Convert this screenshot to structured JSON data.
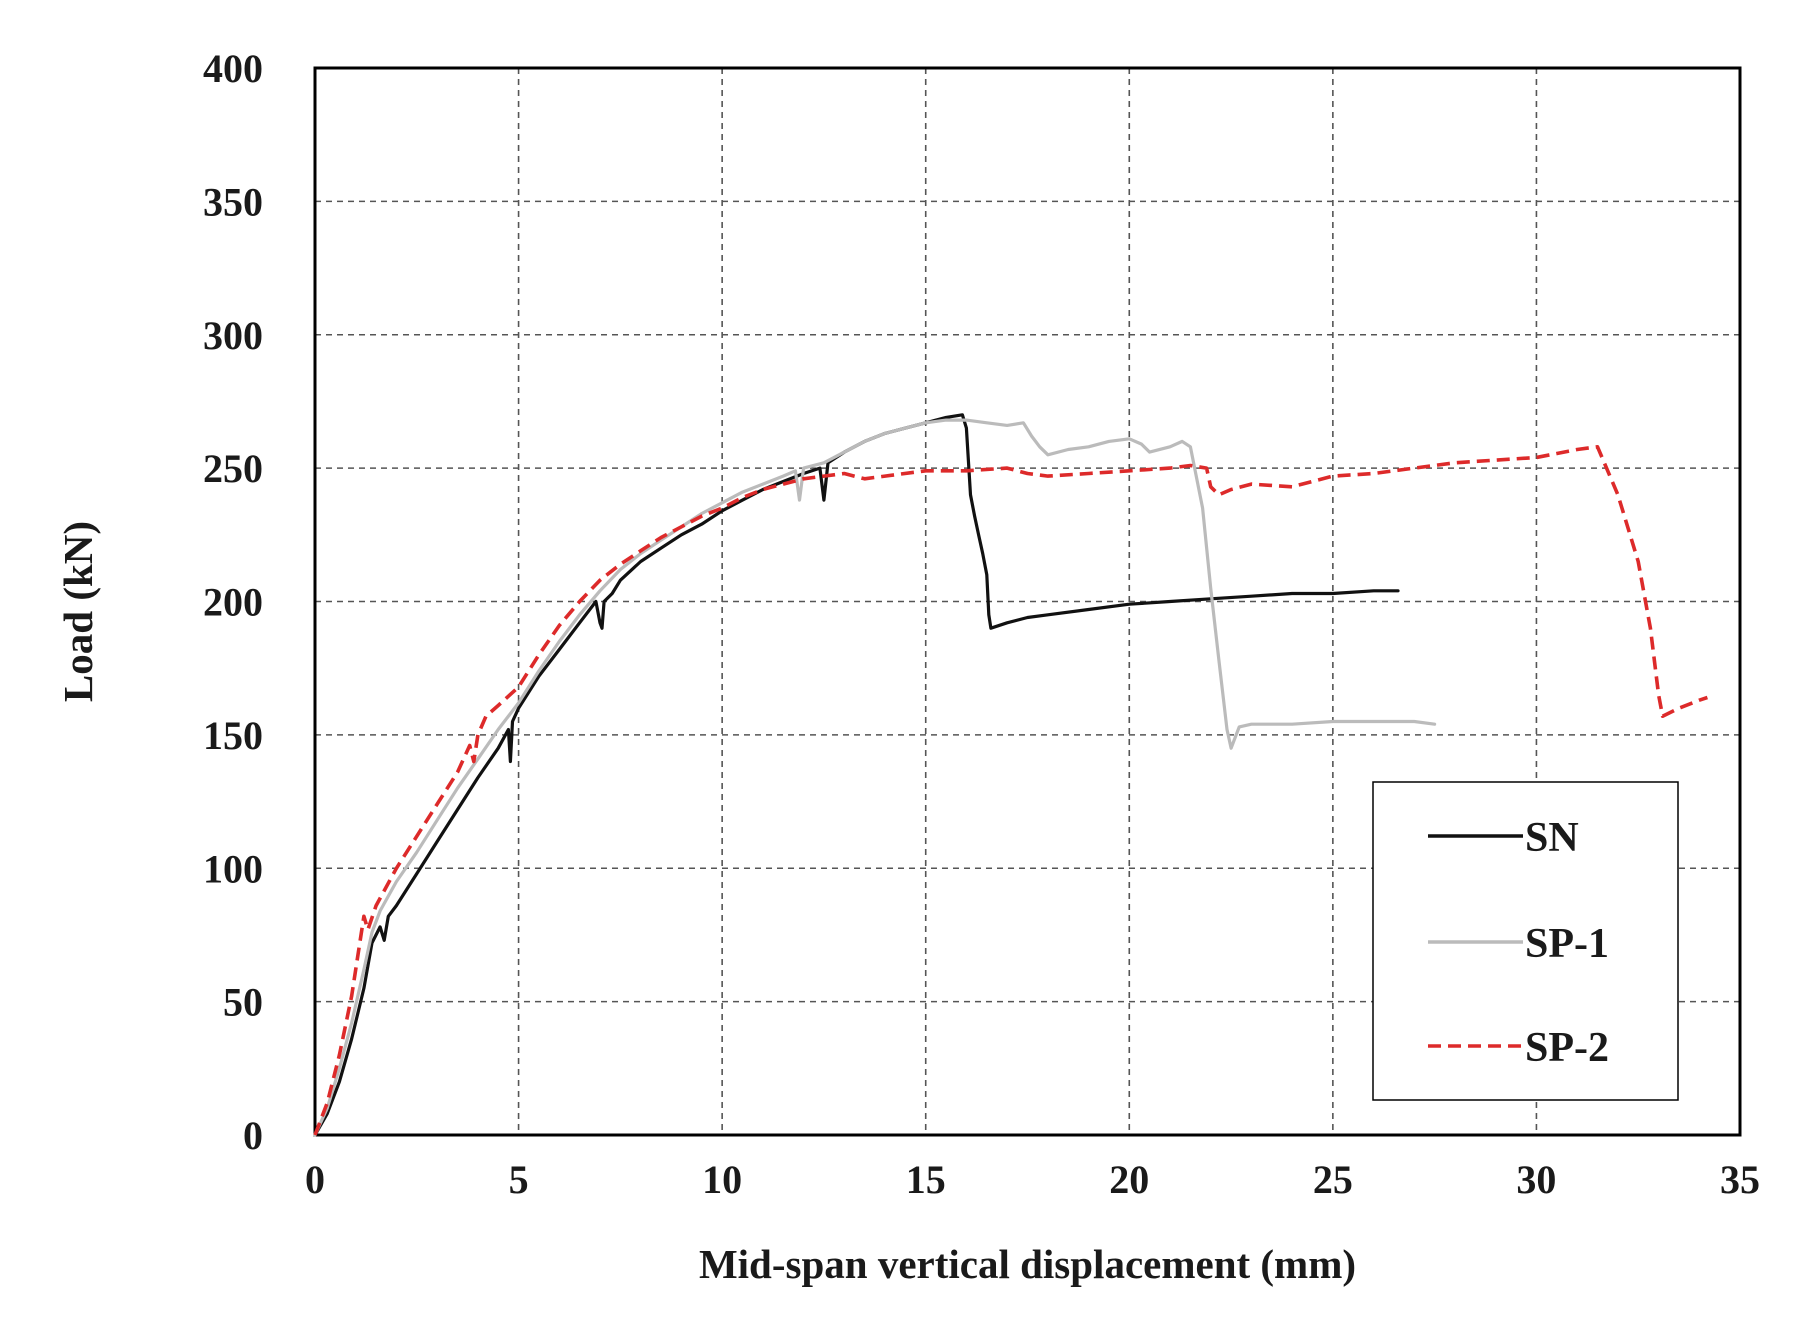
{
  "chart_data": {
    "type": "line",
    "title": "",
    "xlabel": "Mid-span vertical displacement (mm)",
    "ylabel": "Load (kN)",
    "xlim": [
      0,
      35
    ],
    "ylim": [
      0,
      400
    ],
    "xticks": [
      0,
      5,
      10,
      15,
      20,
      25,
      30,
      35
    ],
    "yticks": [
      0,
      50,
      100,
      150,
      200,
      250,
      300,
      350,
      400
    ],
    "xtick_labels": [
      "0",
      "5",
      "10",
      "15",
      "20",
      "25",
      "30",
      "35"
    ],
    "ytick_labels": [
      "0",
      "50",
      "100",
      "150",
      "200",
      "250",
      "300",
      "350",
      "400"
    ],
    "grid": true,
    "legend_position": "bottom-right",
    "series": [
      {
        "name": "SN",
        "color": "#111111",
        "style": "solid",
        "points": [
          [
            0,
            0
          ],
          [
            0.3,
            8
          ],
          [
            0.6,
            20
          ],
          [
            0.9,
            36
          ],
          [
            1.2,
            55
          ],
          [
            1.4,
            72
          ],
          [
            1.6,
            78
          ],
          [
            1.7,
            73
          ],
          [
            1.8,
            82
          ],
          [
            2.0,
            86
          ],
          [
            2.5,
            98
          ],
          [
            3.0,
            110
          ],
          [
            3.5,
            122
          ],
          [
            4.0,
            134
          ],
          [
            4.5,
            145
          ],
          [
            4.75,
            152
          ],
          [
            4.8,
            140
          ],
          [
            4.85,
            155
          ],
          [
            5.0,
            160
          ],
          [
            5.5,
            172
          ],
          [
            6.0,
            182
          ],
          [
            6.5,
            192
          ],
          [
            6.9,
            200
          ],
          [
            7.0,
            192
          ],
          [
            7.05,
            190
          ],
          [
            7.1,
            200
          ],
          [
            7.3,
            203
          ],
          [
            7.5,
            208
          ],
          [
            8.0,
            215
          ],
          [
            8.5,
            220
          ],
          [
            9.0,
            225
          ],
          [
            9.5,
            229
          ],
          [
            10.0,
            234
          ],
          [
            10.5,
            238
          ],
          [
            11.0,
            242
          ],
          [
            11.5,
            245
          ],
          [
            12.0,
            248
          ],
          [
            12.4,
            250
          ],
          [
            12.5,
            238
          ],
          [
            12.6,
            252
          ],
          [
            13.0,
            256
          ],
          [
            13.5,
            260
          ],
          [
            14.0,
            263
          ],
          [
            14.5,
            265
          ],
          [
            15.0,
            267
          ],
          [
            15.5,
            269
          ],
          [
            15.9,
            270
          ],
          [
            16.0,
            265
          ],
          [
            16.1,
            240
          ],
          [
            16.2,
            232
          ],
          [
            16.3,
            225
          ],
          [
            16.4,
            218
          ],
          [
            16.5,
            210
          ],
          [
            16.55,
            195
          ],
          [
            16.6,
            190
          ],
          [
            17.0,
            192
          ],
          [
            17.5,
            194
          ],
          [
            18.0,
            195
          ],
          [
            19.0,
            197
          ],
          [
            20.0,
            199
          ],
          [
            21.0,
            200
          ],
          [
            22.0,
            201
          ],
          [
            23.0,
            202
          ],
          [
            24.0,
            203
          ],
          [
            25.0,
            203
          ],
          [
            26.0,
            204
          ],
          [
            26.6,
            204
          ]
        ]
      },
      {
        "name": "SP-1",
        "color": "#bbbbbb",
        "style": "solid",
        "points": [
          [
            0,
            0
          ],
          [
            0.3,
            10
          ],
          [
            0.6,
            25
          ],
          [
            0.9,
            42
          ],
          [
            1.2,
            62
          ],
          [
            1.4,
            76
          ],
          [
            1.6,
            84
          ],
          [
            2.0,
            95
          ],
          [
            2.5,
            106
          ],
          [
            3.0,
            118
          ],
          [
            3.5,
            130
          ],
          [
            4.0,
            141
          ],
          [
            4.5,
            152
          ],
          [
            5.0,
            162
          ],
          [
            5.5,
            174
          ],
          [
            6.0,
            185
          ],
          [
            6.5,
            195
          ],
          [
            7.0,
            204
          ],
          [
            7.5,
            212
          ],
          [
            8.0,
            218
          ],
          [
            8.5,
            223
          ],
          [
            9.0,
            228
          ],
          [
            9.5,
            233
          ],
          [
            10.0,
            237
          ],
          [
            10.5,
            241
          ],
          [
            11.0,
            244
          ],
          [
            11.5,
            247
          ],
          [
            11.8,
            249
          ],
          [
            11.9,
            238
          ],
          [
            12.0,
            250
          ],
          [
            12.5,
            252
          ],
          [
            13.0,
            256
          ],
          [
            13.5,
            260
          ],
          [
            14.0,
            263
          ],
          [
            14.5,
            265
          ],
          [
            15.0,
            267
          ],
          [
            15.5,
            268
          ],
          [
            16.0,
            268
          ],
          [
            16.5,
            267
          ],
          [
            17.0,
            266
          ],
          [
            17.4,
            267
          ],
          [
            17.6,
            262
          ],
          [
            17.8,
            258
          ],
          [
            18.0,
            255
          ],
          [
            18.5,
            257
          ],
          [
            19.0,
            258
          ],
          [
            19.5,
            260
          ],
          [
            20.0,
            261
          ],
          [
            20.3,
            259
          ],
          [
            20.5,
            256
          ],
          [
            21.0,
            258
          ],
          [
            21.3,
            260
          ],
          [
            21.5,
            258
          ],
          [
            21.8,
            235
          ],
          [
            22.0,
            205
          ],
          [
            22.2,
            178
          ],
          [
            22.4,
            152
          ],
          [
            22.5,
            145
          ],
          [
            22.7,
            153
          ],
          [
            23.0,
            154
          ],
          [
            24.0,
            154
          ],
          [
            25.0,
            155
          ],
          [
            26.0,
            155
          ],
          [
            27.0,
            155
          ],
          [
            27.5,
            154
          ]
        ]
      },
      {
        "name": "SP-2",
        "color": "#dd2a2a",
        "style": "dashed",
        "points": [
          [
            0,
            0
          ],
          [
            0.3,
            12
          ],
          [
            0.6,
            30
          ],
          [
            0.9,
            52
          ],
          [
            1.1,
            72
          ],
          [
            1.2,
            82
          ],
          [
            1.3,
            77
          ],
          [
            1.5,
            86
          ],
          [
            2.0,
            100
          ],
          [
            2.5,
            112
          ],
          [
            3.0,
            124
          ],
          [
            3.5,
            136
          ],
          [
            3.8,
            146
          ],
          [
            3.9,
            140
          ],
          [
            4.0,
            150
          ],
          [
            4.2,
            157
          ],
          [
            4.5,
            161
          ],
          [
            5.0,
            168
          ],
          [
            5.5,
            180
          ],
          [
            6.0,
            191
          ],
          [
            6.5,
            200
          ],
          [
            7.0,
            208
          ],
          [
            7.5,
            214
          ],
          [
            8.0,
            219
          ],
          [
            8.5,
            224
          ],
          [
            9.0,
            228
          ],
          [
            9.5,
            232
          ],
          [
            10.0,
            235
          ],
          [
            10.5,
            239
          ],
          [
            11.0,
            242
          ],
          [
            11.5,
            244
          ],
          [
            12.0,
            246
          ],
          [
            12.5,
            247
          ],
          [
            13.0,
            248
          ],
          [
            13.5,
            246
          ],
          [
            14.0,
            247
          ],
          [
            15.0,
            249
          ],
          [
            16.0,
            249
          ],
          [
            17.0,
            250
          ],
          [
            17.5,
            248
          ],
          [
            18.0,
            247
          ],
          [
            19.0,
            248
          ],
          [
            20.0,
            249
          ],
          [
            21.0,
            250
          ],
          [
            21.5,
            251
          ],
          [
            21.9,
            250
          ],
          [
            22.0,
            243
          ],
          [
            22.2,
            240
          ],
          [
            22.5,
            242
          ],
          [
            23.0,
            244
          ],
          [
            24.0,
            243
          ],
          [
            25.0,
            247
          ],
          [
            26.0,
            248
          ],
          [
            27.0,
            250
          ],
          [
            28.0,
            252
          ],
          [
            29.0,
            253
          ],
          [
            30.0,
            254
          ],
          [
            31.0,
            257
          ],
          [
            31.5,
            258
          ],
          [
            32.0,
            240
          ],
          [
            32.5,
            215
          ],
          [
            32.8,
            190
          ],
          [
            33.0,
            165
          ],
          [
            33.1,
            157
          ],
          [
            33.5,
            160
          ],
          [
            34.0,
            163
          ],
          [
            34.2,
            164
          ]
        ]
      }
    ]
  }
}
